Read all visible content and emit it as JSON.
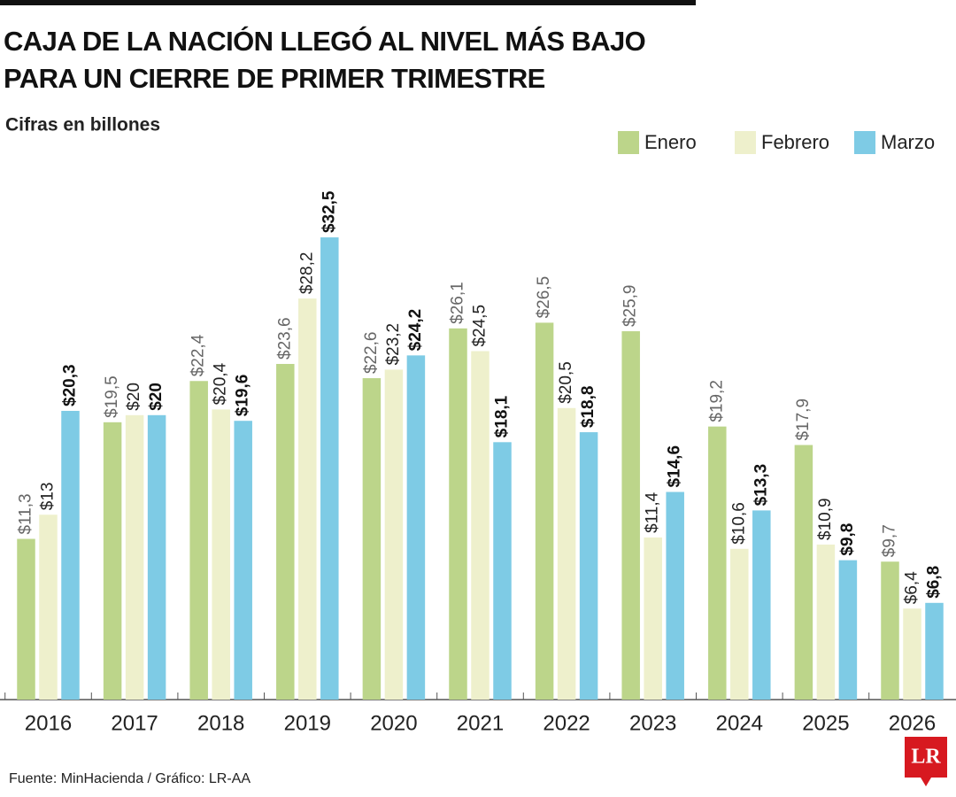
{
  "chart_data": {
    "type": "bar",
    "title": "CAJA DE LA NACIÓN LLEGÓ AL NIVEL MÁS BAJO PARA UN CIERRE DE PRIMER TRIMESTRE",
    "subtitle": "Cifras en billones",
    "source": "Fuente: MinHacienda / Gráfico: LR-AA",
    "logo": "LR",
    "categories": [
      "2016",
      "2017",
      "2018",
      "2019",
      "2020",
      "2021",
      "2022",
      "2023",
      "2024",
      "2025",
      "2026"
    ],
    "series": [
      {
        "name": "Enero",
        "color": "#bcd58a",
        "values": [
          11.3,
          19.5,
          22.4,
          23.6,
          22.6,
          26.1,
          26.5,
          25.9,
          19.2,
          17.9,
          9.7
        ],
        "value_labels": [
          "$11,3",
          "$19,5",
          "$22,4",
          "$23,6",
          "$22,6",
          "$26,1",
          "$26,5",
          "$25,9",
          "$19,2",
          "$17,9",
          "$9,7"
        ]
      },
      {
        "name": "Febrero",
        "color": "#eef0cc",
        "values": [
          13,
          20,
          20.4,
          28.2,
          23.2,
          24.5,
          20.5,
          11.4,
          10.6,
          10.9,
          6.4
        ],
        "value_labels": [
          "$13",
          "$20",
          "$20,4",
          "$28,2",
          "$23,2",
          "$24,5",
          "$20,5",
          "$11,4",
          "$10,6",
          "$10,9",
          "$6,4"
        ]
      },
      {
        "name": "Marzo",
        "color": "#7ecbe5",
        "values": [
          20.3,
          20,
          19.6,
          32.5,
          24.2,
          18.1,
          18.8,
          14.6,
          13.3,
          9.8,
          6.8
        ],
        "value_labels": [
          "$20,3",
          "$20",
          "$19,6",
          "$32,5",
          "$24,2",
          "$18,1",
          "$18,8",
          "$14,6",
          "$13,3",
          "$9,8",
          "$6,8"
        ]
      }
    ],
    "legend": "top-right"
  }
}
